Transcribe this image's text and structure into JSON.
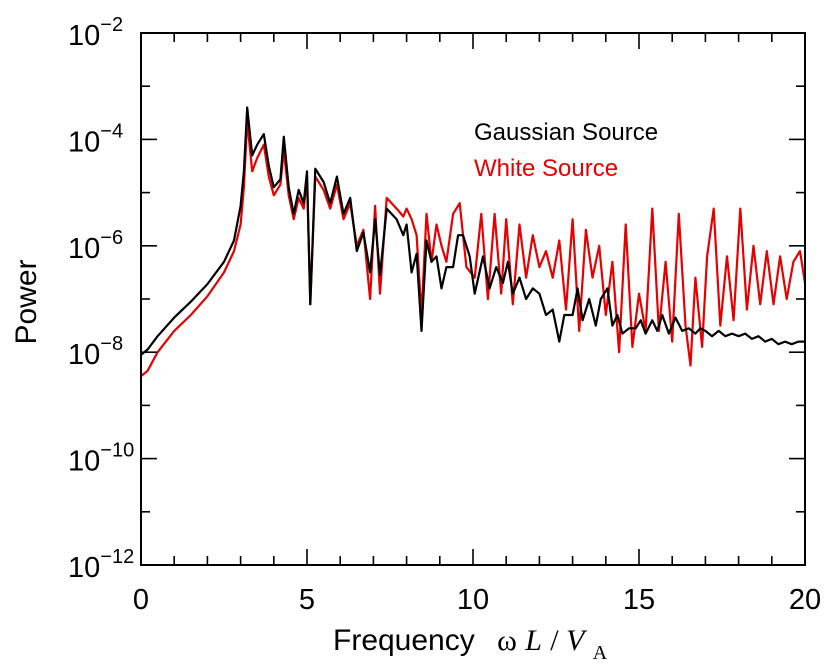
{
  "chart_data": {
    "type": "line",
    "title": "",
    "xlabel": "Frequency",
    "xlabel_math": {
      "omega": "ω",
      "L": "L",
      "slash": " / ",
      "V": "V",
      "sub": "A"
    },
    "ylabel": "Power",
    "xlim": [
      0,
      20
    ],
    "ylim_log10": [
      -12,
      -2
    ],
    "yscale": "log",
    "grid": false,
    "legend_position": "top-right",
    "x_ticks": [
      {
        "value": 0,
        "label": "0"
      },
      {
        "value": 5,
        "label": "5"
      },
      {
        "value": 10,
        "label": "10"
      },
      {
        "value": 15,
        "label": "15"
      },
      {
        "value": 20,
        "label": "20"
      }
    ],
    "y_ticks": [
      {
        "exp": -2,
        "base": "10",
        "sup": "−2"
      },
      {
        "exp": -4,
        "base": "10",
        "sup": "−4"
      },
      {
        "exp": -6,
        "base": "10",
        "sup": "−6"
      },
      {
        "exp": -8,
        "base": "10",
        "sup": "−8"
      },
      {
        "exp": -10,
        "base": "10",
        "sup": "−10"
      },
      {
        "exp": -12,
        "base": "10",
        "sup": "−12"
      }
    ],
    "series": [
      {
        "name": "Gaussian Source",
        "color": "#000000",
        "points": [
          [
            0,
            -8.05
          ],
          [
            0.2,
            -7.95
          ],
          [
            0.5,
            -7.7
          ],
          [
            1,
            -7.35
          ],
          [
            1.5,
            -7.05
          ],
          [
            2,
            -6.72
          ],
          [
            2.5,
            -6.3
          ],
          [
            2.8,
            -5.9
          ],
          [
            3.0,
            -5.25
          ],
          [
            3.1,
            -4.6
          ],
          [
            3.2,
            -3.4
          ],
          [
            3.35,
            -4.3
          ],
          [
            3.5,
            -4.1
          ],
          [
            3.7,
            -3.9
          ],
          [
            3.85,
            -4.5
          ],
          [
            4.0,
            -4.9
          ],
          [
            4.2,
            -4.75
          ],
          [
            4.3,
            -3.95
          ],
          [
            4.45,
            -4.9
          ],
          [
            4.6,
            -5.4
          ],
          [
            4.75,
            -4.95
          ],
          [
            4.9,
            -5.2
          ],
          [
            5.0,
            -4.6
          ],
          [
            5.1,
            -7.1
          ],
          [
            5.25,
            -4.55
          ],
          [
            5.5,
            -4.8
          ],
          [
            5.7,
            -5.2
          ],
          [
            5.9,
            -4.7
          ],
          [
            6.1,
            -5.4
          ],
          [
            6.3,
            -5.1
          ],
          [
            6.5,
            -6.1
          ],
          [
            6.7,
            -5.75
          ],
          [
            6.9,
            -6.5
          ],
          [
            7.05,
            -5.5
          ],
          [
            7.2,
            -6.55
          ],
          [
            7.4,
            -5.3
          ],
          [
            7.7,
            -5.5
          ],
          [
            7.9,
            -5.8
          ],
          [
            8.0,
            -5.6
          ],
          [
            8.15,
            -6.5
          ],
          [
            8.3,
            -6.15
          ],
          [
            8.45,
            -7.6
          ],
          [
            8.6,
            -5.9
          ],
          [
            8.75,
            -6.3
          ],
          [
            8.9,
            -6.2
          ],
          [
            9.05,
            -6.8
          ],
          [
            9.2,
            -6.4
          ],
          [
            9.4,
            -6.4
          ],
          [
            9.55,
            -5.8
          ],
          [
            9.7,
            -5.8
          ],
          [
            9.9,
            -6.2
          ],
          [
            10.05,
            -6.9
          ],
          [
            10.3,
            -6.2
          ],
          [
            10.5,
            -6.8
          ],
          [
            10.7,
            -6.4
          ],
          [
            10.9,
            -6.7
          ],
          [
            11.05,
            -6.3
          ],
          [
            11.2,
            -6.9
          ],
          [
            11.4,
            -6.6
          ],
          [
            11.6,
            -7.0
          ],
          [
            11.8,
            -6.8
          ],
          [
            12.0,
            -6.9
          ],
          [
            12.2,
            -7.3
          ],
          [
            12.4,
            -7.2
          ],
          [
            12.6,
            -7.8
          ],
          [
            12.75,
            -7.3
          ],
          [
            13.0,
            -7.3
          ],
          [
            13.15,
            -6.8
          ],
          [
            13.3,
            -7.4
          ],
          [
            13.5,
            -7.0
          ],
          [
            13.7,
            -7.5
          ],
          [
            13.85,
            -7.0
          ],
          [
            14.05,
            -6.8
          ],
          [
            14.2,
            -7.5
          ],
          [
            14.35,
            -7.3
          ],
          [
            14.5,
            -7.65
          ],
          [
            14.7,
            -7.55
          ],
          [
            14.9,
            -7.55
          ],
          [
            15.05,
            -7.4
          ],
          [
            15.2,
            -7.65
          ],
          [
            15.4,
            -7.4
          ],
          [
            15.55,
            -7.6
          ],
          [
            15.7,
            -7.3
          ],
          [
            15.9,
            -7.65
          ],
          [
            16.1,
            -7.35
          ],
          [
            16.3,
            -7.6
          ],
          [
            16.5,
            -7.55
          ],
          [
            16.7,
            -7.65
          ],
          [
            16.85,
            -7.55
          ],
          [
            17.0,
            -7.6
          ],
          [
            17.2,
            -7.7
          ],
          [
            17.4,
            -7.6
          ],
          [
            17.6,
            -7.7
          ],
          [
            17.8,
            -7.65
          ],
          [
            18.0,
            -7.7
          ],
          [
            18.2,
            -7.65
          ],
          [
            18.4,
            -7.75
          ],
          [
            18.6,
            -7.7
          ],
          [
            18.8,
            -7.8
          ],
          [
            19.0,
            -7.75
          ],
          [
            19.2,
            -7.85
          ],
          [
            19.4,
            -7.8
          ],
          [
            19.6,
            -7.85
          ],
          [
            19.8,
            -7.8
          ],
          [
            20.0,
            -7.8
          ]
        ]
      },
      {
        "name": "White Source",
        "color": "#e60000",
        "points": [
          [
            0,
            -8.45
          ],
          [
            0.2,
            -8.35
          ],
          [
            0.5,
            -8.0
          ],
          [
            1,
            -7.6
          ],
          [
            1.5,
            -7.3
          ],
          [
            2,
            -6.95
          ],
          [
            2.5,
            -6.5
          ],
          [
            2.8,
            -6.1
          ],
          [
            3.0,
            -5.6
          ],
          [
            3.1,
            -4.9
          ],
          [
            3.2,
            -3.65
          ],
          [
            3.35,
            -4.6
          ],
          [
            3.5,
            -4.35
          ],
          [
            3.7,
            -4.1
          ],
          [
            3.85,
            -4.7
          ],
          [
            4.0,
            -5.05
          ],
          [
            4.2,
            -4.85
          ],
          [
            4.3,
            -4.2
          ],
          [
            4.45,
            -5.05
          ],
          [
            4.6,
            -5.5
          ],
          [
            4.75,
            -5.1
          ],
          [
            4.9,
            -5.3
          ],
          [
            5.0,
            -4.75
          ],
          [
            5.1,
            -7.1
          ],
          [
            5.25,
            -4.7
          ],
          [
            5.5,
            -4.95
          ],
          [
            5.7,
            -5.3
          ],
          [
            5.9,
            -4.85
          ],
          [
            6.1,
            -5.5
          ],
          [
            6.3,
            -5.2
          ],
          [
            6.5,
            -6.0
          ],
          [
            6.7,
            -5.7
          ],
          [
            6.9,
            -7.0
          ],
          [
            7.05,
            -5.25
          ],
          [
            7.2,
            -6.9
          ],
          [
            7.4,
            -5.1
          ],
          [
            7.7,
            -5.3
          ],
          [
            7.9,
            -5.45
          ],
          [
            8.0,
            -5.3
          ],
          [
            8.15,
            -5.5
          ],
          [
            8.3,
            -5.8
          ],
          [
            8.45,
            -7.3
          ],
          [
            8.6,
            -5.4
          ],
          [
            8.75,
            -6.3
          ],
          [
            8.9,
            -5.6
          ],
          [
            9.05,
            -6.0
          ],
          [
            9.2,
            -6.3
          ],
          [
            9.4,
            -5.4
          ],
          [
            9.6,
            -5.2
          ],
          [
            9.8,
            -6.4
          ],
          [
            10.05,
            -6.6
          ],
          [
            10.25,
            -5.4
          ],
          [
            10.45,
            -7.0
          ],
          [
            10.65,
            -5.4
          ],
          [
            10.85,
            -6.9
          ],
          [
            11.0,
            -5.5
          ],
          [
            11.2,
            -7.1
          ],
          [
            11.4,
            -5.6
          ],
          [
            11.6,
            -6.6
          ],
          [
            11.8,
            -5.8
          ],
          [
            12.0,
            -6.4
          ],
          [
            12.2,
            -6.1
          ],
          [
            12.4,
            -6.6
          ],
          [
            12.6,
            -5.9
          ],
          [
            12.8,
            -7.2
          ],
          [
            13.0,
            -5.5
          ],
          [
            13.2,
            -7.6
          ],
          [
            13.4,
            -5.7
          ],
          [
            13.6,
            -6.6
          ],
          [
            13.8,
            -6.0
          ],
          [
            14.0,
            -7.3
          ],
          [
            14.2,
            -6.3
          ],
          [
            14.4,
            -8.0
          ],
          [
            14.6,
            -5.6
          ],
          [
            14.8,
            -7.9
          ],
          [
            15.0,
            -6.9
          ],
          [
            15.2,
            -7.6
          ],
          [
            15.4,
            -5.3
          ],
          [
            15.6,
            -7.6
          ],
          [
            15.8,
            -6.3
          ],
          [
            16.0,
            -7.8
          ],
          [
            16.2,
            -5.4
          ],
          [
            16.4,
            -7.5
          ],
          [
            16.55,
            -8.25
          ],
          [
            16.7,
            -6.6
          ],
          [
            16.9,
            -7.9
          ],
          [
            17.05,
            -6.2
          ],
          [
            17.25,
            -5.3
          ],
          [
            17.45,
            -7.5
          ],
          [
            17.65,
            -6.2
          ],
          [
            17.85,
            -7.4
          ],
          [
            18.05,
            -5.3
          ],
          [
            18.25,
            -7.2
          ],
          [
            18.45,
            -6.0
          ],
          [
            18.65,
            -7.1
          ],
          [
            18.85,
            -6.1
          ],
          [
            19.05,
            -7.1
          ],
          [
            19.25,
            -6.2
          ],
          [
            19.45,
            -7.0
          ],
          [
            19.65,
            -6.3
          ],
          [
            19.85,
            -6.1
          ],
          [
            20.0,
            -6.7
          ]
        ]
      }
    ]
  }
}
